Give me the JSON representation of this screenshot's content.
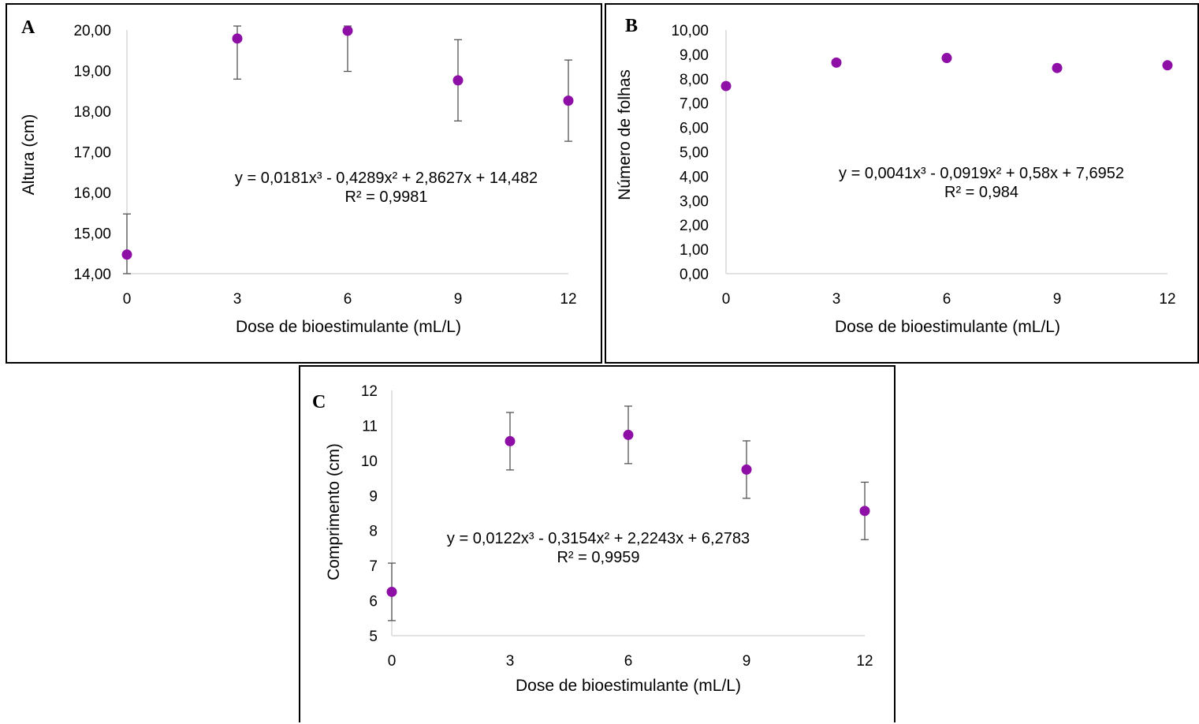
{
  "chart_data": [
    {
      "panel": "A",
      "type": "scatter",
      "x": [
        0,
        3,
        6,
        9,
        12
      ],
      "y": [
        14.47,
        19.79,
        19.98,
        18.76,
        18.26
      ],
      "error": [
        1.0,
        1.0,
        1.0,
        1.0,
        1.0
      ],
      "xlabel": "Dose de bioestimulante (mL/L)",
      "ylabel": "Altura (cm)",
      "xticks": [
        "0",
        "3",
        "6",
        "9",
        "12"
      ],
      "yticks": [
        "14,00",
        "15,00",
        "16,00",
        "17,00",
        "18,00",
        "19,00",
        "20,00"
      ],
      "ylim": [
        14,
        20
      ],
      "equation": "y = 0,0181x³ - 0,4289x² + 2,8627x + 14,482",
      "r2": "R² = 0,9981",
      "marker_color": "#8e0fa6"
    },
    {
      "panel": "B",
      "type": "scatter",
      "x": [
        0,
        3,
        6,
        9,
        12
      ],
      "y": [
        7.7,
        8.66,
        8.85,
        8.44,
        8.55
      ],
      "error": [
        0.1,
        0.1,
        0.1,
        0.1,
        0.1
      ],
      "xlabel": "Dose de bioestimulante (mL/L)",
      "ylabel": "Número de folhas",
      "xticks": [
        "0",
        "3",
        "6",
        "9",
        "12"
      ],
      "yticks": [
        "0,00",
        "1,00",
        "2,00",
        "3,00",
        "4,00",
        "5,00",
        "6,00",
        "7,00",
        "8,00",
        "9,00",
        "10,00"
      ],
      "ylim": [
        0,
        10
      ],
      "equation": "y = 0,0041x³ - 0,0919x² + 0,58x + 7,6952",
      "r2": "R² = 0,984",
      "marker_color": "#8e0fa6"
    },
    {
      "panel": "C",
      "type": "scatter",
      "x": [
        0,
        3,
        6,
        9,
        12
      ],
      "y": [
        6.25,
        10.55,
        10.73,
        9.74,
        8.56
      ],
      "error": [
        0.82,
        0.82,
        0.82,
        0.82,
        0.82
      ],
      "xlabel": "Dose de bioestimulante (mL/L)",
      "ylabel": "Comprimento (cm)",
      "xticks": [
        "0",
        "3",
        "6",
        "9",
        "12"
      ],
      "yticks": [
        "5",
        "6",
        "7",
        "8",
        "9",
        "10",
        "11",
        "12"
      ],
      "ylim": [
        5,
        12
      ],
      "equation": "y = 0,0122x³ - 0,3154x² + 2,2243x + 6,2783",
      "r2": "R² = 0,9959",
      "marker_color": "#8e0fa6"
    }
  ]
}
